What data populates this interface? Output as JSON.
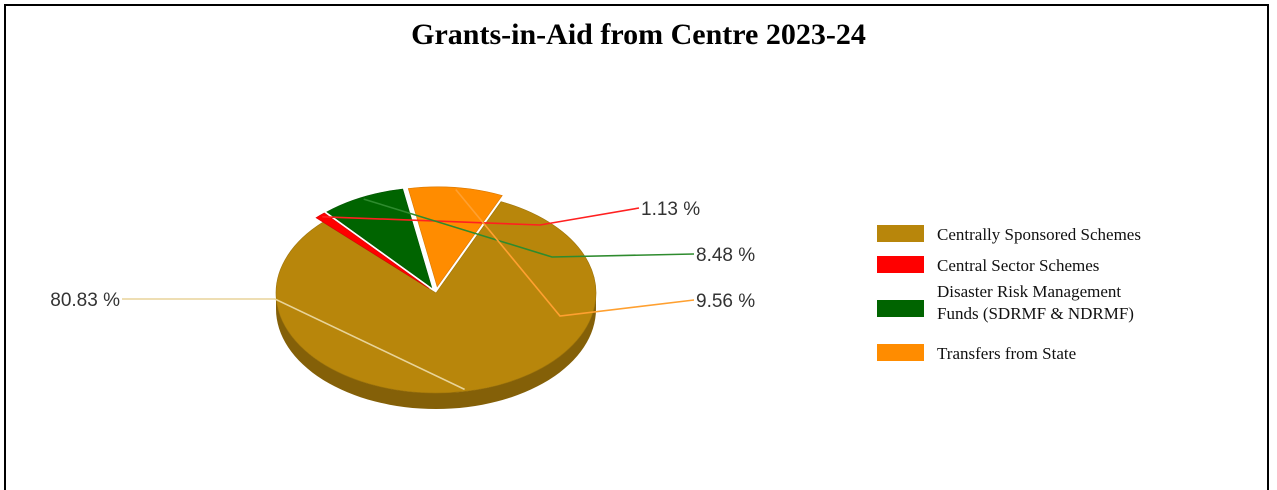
{
  "chart_data": {
    "type": "pie",
    "title": "Grants-in-Aid from Centre 2023-24",
    "slices": [
      {
        "label": "Centrally Sponsored Schemes",
        "value": 80.83,
        "display": "80.83 %",
        "color": "#B8860B"
      },
      {
        "label": "Central Sector Schemes",
        "value": 1.13,
        "display": "1.13 %",
        "color": "#FF0000"
      },
      {
        "label": "Disaster Risk Management Funds (SDRMF & NDRMF)",
        "value": 8.48,
        "display": "8.48 %",
        "color": "#006400"
      },
      {
        "label": "Transfers from State",
        "value": 9.56,
        "display": "9.56 %",
        "color": "#FF8C00"
      }
    ],
    "legend": "right"
  }
}
